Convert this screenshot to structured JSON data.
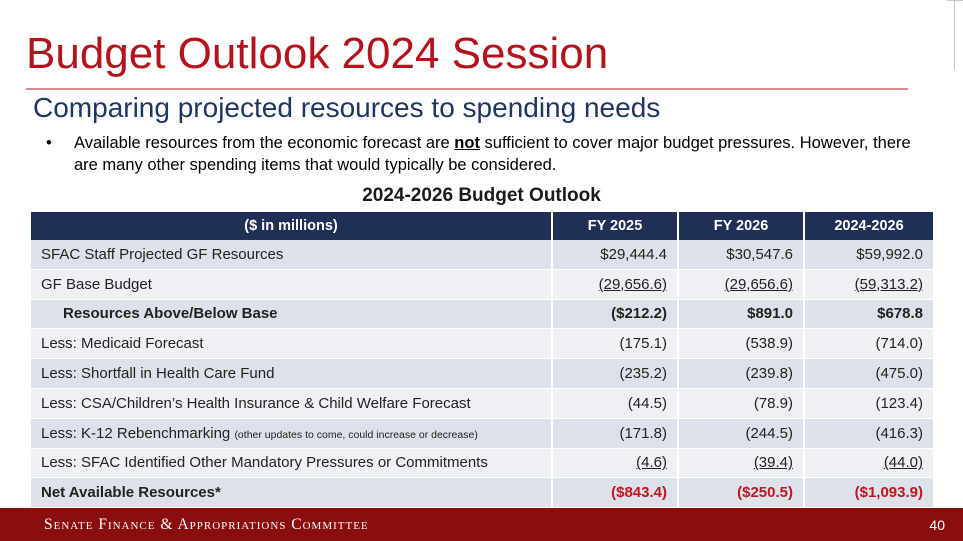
{
  "slide": {
    "title": "Budget Outlook 2024 Session",
    "subtitle": "Comparing projected resources to spending needs",
    "bullet": {
      "before": "Available resources from the economic forecast are ",
      "emphasis": "not",
      "after": " sufficient to cover major budget pressures. However, there are many other spending items that would typically be considered."
    },
    "table_title": "2024-2026 Budget Outlook"
  },
  "table": {
    "headers": [
      "($ in millions)",
      "FY 2025",
      "FY 2026",
      "2024-2026"
    ],
    "rows": [
      {
        "label": "SFAC Staff Projected GF Resources",
        "note": "",
        "values": [
          "$29,444.4",
          "$30,547.6",
          "$59,992.0"
        ]
      },
      {
        "label": "GF Base Budget",
        "note": "",
        "values": [
          "(29,656.6)",
          "(29,656.6)",
          "(59,313.2)"
        ]
      },
      {
        "label": "Resources Above/Below Base",
        "note": "",
        "values": [
          "($212.2)",
          "$891.0",
          "$678.8"
        ]
      },
      {
        "label": "Less: Medicaid Forecast",
        "note": "",
        "values": [
          "(175.1)",
          "(538.9)",
          "(714.0)"
        ]
      },
      {
        "label": "Less: Shortfall in Health Care Fund",
        "note": "",
        "values": [
          "(235.2)",
          "(239.8)",
          "(475.0)"
        ]
      },
      {
        "label": "Less: CSA/Children’s Health Insurance & Child Welfare Forecast",
        "note": "",
        "values": [
          "(44.5)",
          "(78.9)",
          "(123.4)"
        ]
      },
      {
        "label": "Less: K-12 Rebenchmarking ",
        "note": "(other updates to come, could increase or decrease)",
        "values": [
          "(171.8)",
          "(244.5)",
          "(416.3)"
        ]
      },
      {
        "label": "Less: SFAC Identified Other Mandatory Pressures or Commitments",
        "note": "",
        "values": [
          "(4.6)",
          "(39.4)",
          "(44.0)"
        ]
      },
      {
        "label": "Net Available Resources*",
        "note": "",
        "values": [
          "($843.4)",
          "($250.5)",
          "($1,093.9)"
        ]
      }
    ]
  },
  "footer": {
    "committee": "Senate Finance & Appropriations Committee",
    "page_number": "40"
  },
  "colors": {
    "title_red": "#b3141b",
    "header_navy": "#1f2f56",
    "footer_red": "#8b0e0f",
    "negative_red": "#c0151c"
  }
}
